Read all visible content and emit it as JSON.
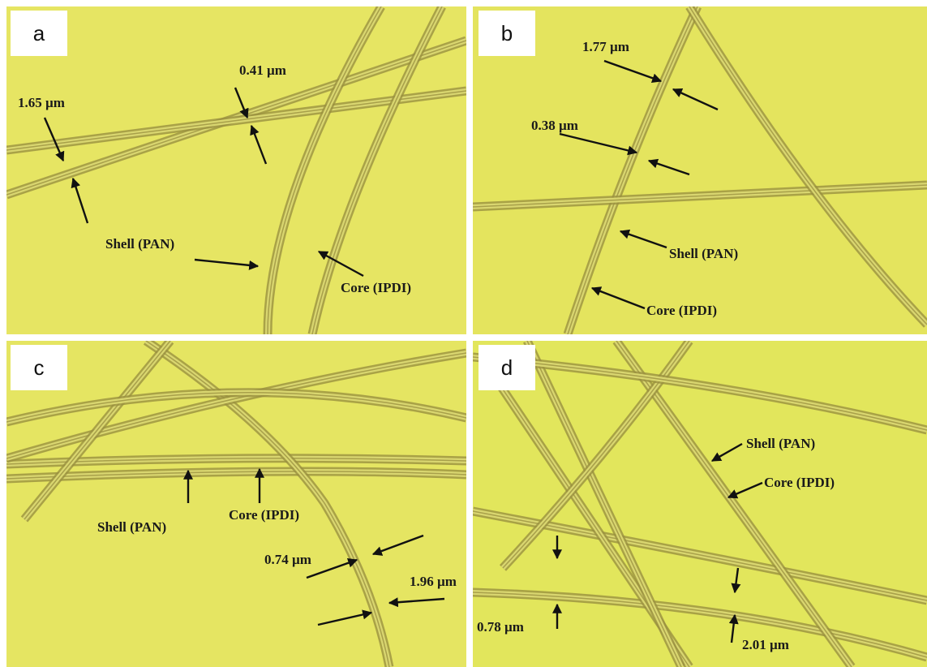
{
  "panels": [
    {
      "label": "a",
      "annotations": [
        "1.65 µm",
        "0.41 µm",
        "Shell (PAN)",
        "Core (IPDI)"
      ]
    },
    {
      "label": "b",
      "annotations": [
        "1.77 µm",
        "0.38 µm",
        "Shell (PAN)",
        "Core (IPDI)"
      ]
    },
    {
      "label": "c",
      "annotations": [
        "Shell (PAN)",
        "Core (IPDI)",
        "0.74 µm",
        "1.96 µm"
      ]
    },
    {
      "label": "d",
      "annotations": [
        "Shell (PAN)",
        "Core (IPDI)",
        "0.78 µm",
        "2.01 µm"
      ]
    }
  ]
}
